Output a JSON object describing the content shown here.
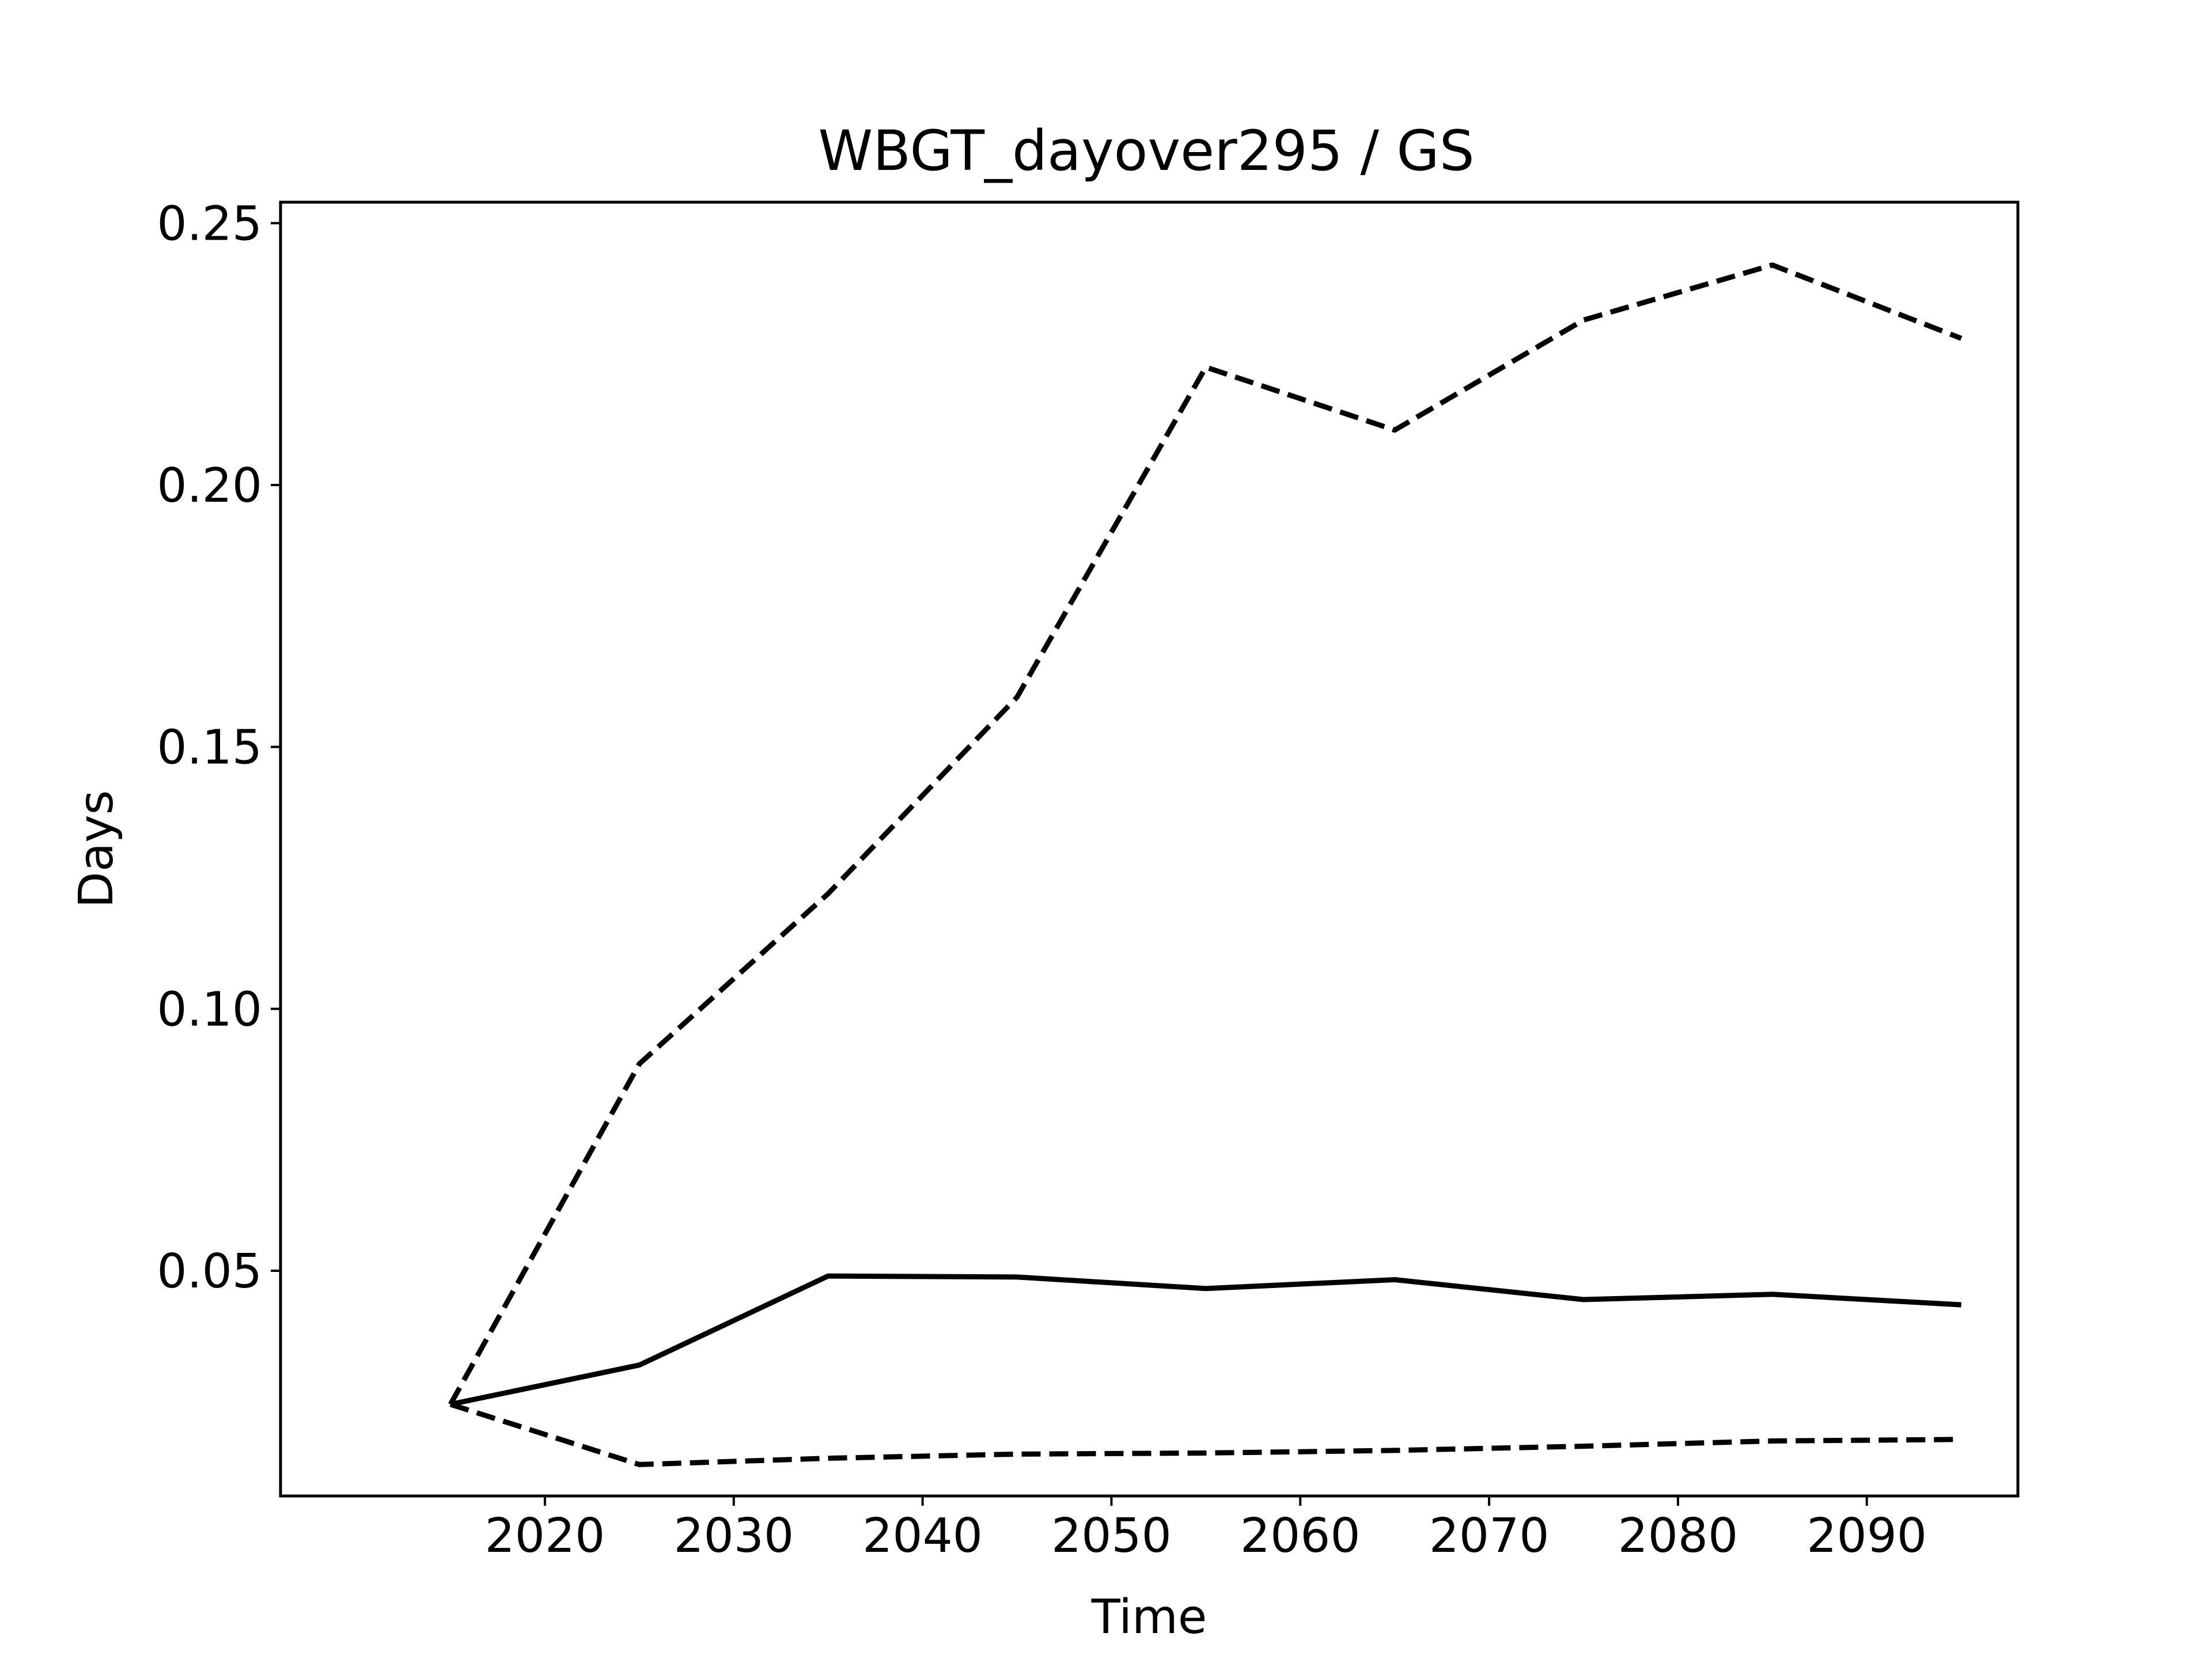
{
  "chart_data": {
    "type": "line",
    "title": "WBGT_dayover295 / GS",
    "xlabel": "Time",
    "ylabel": "Days",
    "x": [
      2015,
      2025,
      2035,
      2045,
      2055,
      2065,
      2075,
      2085,
      2095
    ],
    "xlim": [
      2006,
      2098
    ],
    "ylim": [
      0.007,
      0.254
    ],
    "xticks": [
      2020,
      2030,
      2040,
      2050,
      2060,
      2070,
      2080,
      2090
    ],
    "yticks": [
      0.05,
      0.1,
      0.15,
      0.2,
      0.25
    ],
    "ytick_labels": [
      "0.05",
      "0.10",
      "0.15",
      "0.20",
      "0.25"
    ],
    "grid": false,
    "series": [
      {
        "style": "solid",
        "color": "#000000",
        "values": [
          0.0245,
          0.032,
          0.049,
          0.0488,
          0.0466,
          0.0483,
          0.0445,
          0.0455,
          0.0435
        ]
      },
      {
        "style": "dashed",
        "color": "#000000",
        "values": [
          0.0245,
          0.0895,
          0.122,
          0.1595,
          0.2225,
          0.2105,
          0.2315,
          0.242,
          0.228
        ]
      },
      {
        "style": "dashed",
        "color": "#000000",
        "values": [
          0.0245,
          0.013,
          0.0142,
          0.015,
          0.0152,
          0.0157,
          0.0165,
          0.0175,
          0.0178
        ]
      }
    ]
  }
}
